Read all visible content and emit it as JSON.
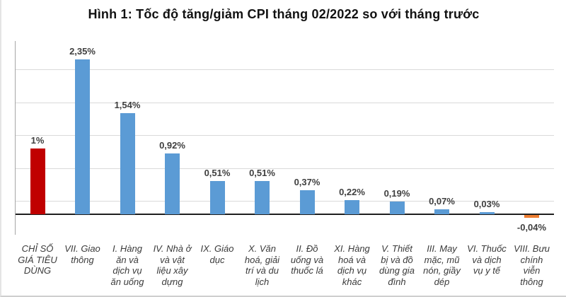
{
  "figure": {
    "title": "Hình 1: Tốc độ tăng/giảm CPI tháng 02/2022 so với tháng trước"
  },
  "chart_data": {
    "type": "bar",
    "title": "Hình 1: Tốc độ tăng/giảm CPI tháng 02/2022 so với tháng trước",
    "unit": "%",
    "legend": "none",
    "grid": true,
    "xlabel": "",
    "ylabel": "",
    "ylim": [
      -0.31,
      2.63
    ],
    "gridline_values": [
      0.2,
      0.7,
      1.2,
      1.7,
      2.2
    ],
    "categories": [
      "CHỈ SỐ GIÁ TIÊU DÙNG",
      "VII. Giao thông",
      "I. Hàng ăn và dịch vụ ăn uống",
      "IV. Nhà ở và vật liệu xây dựng",
      "IX. Giáo dục",
      "X. Văn hoá, giải trí và du lịch",
      "II. Đồ uống và thuốc lá",
      "XI. Hàng hoá và dịch vụ khác",
      "V. Thiết bị và đồ dùng gia đình",
      "III. May mặc, mũ nón, giầy dép",
      "VI. Thuốc và dịch vụ y tế",
      "VIII. Bưu chính viễn thông"
    ],
    "category_lines": [
      [
        "CHỈ SỐ",
        "GIÁ TIÊU",
        "DÙNG"
      ],
      [
        "VII. Giao",
        "thông"
      ],
      [
        "I. Hàng",
        "ăn và",
        "dịch vụ",
        "ăn uống"
      ],
      [
        "IV. Nhà ở",
        "và vật",
        "liệu xây",
        "dựng"
      ],
      [
        "IX. Giáo",
        "dục"
      ],
      [
        "X. Văn",
        "hoá, giải",
        "trí và du",
        "lịch"
      ],
      [
        "II. Đồ",
        "uống và",
        "thuốc lá"
      ],
      [
        "XI. Hàng",
        "hoá và",
        "dịch vụ",
        "khác"
      ],
      [
        "V. Thiết",
        "bị và đồ",
        "dùng gia",
        "đình"
      ],
      [
        "III. May",
        "mặc, mũ",
        "nón, giầy",
        "dép"
      ],
      [
        "VI. Thuốc",
        "và dịch",
        "vụ y tế"
      ],
      [
        "VIII. Bưu",
        "chính",
        "viễn",
        "thông"
      ]
    ],
    "values": [
      1,
      2.35,
      1.54,
      0.92,
      0.51,
      0.51,
      0.37,
      0.22,
      0.19,
      0.07,
      0.03,
      -0.04
    ],
    "value_labels": [
      "1%",
      "2,35%",
      "1,54%",
      "0,92%",
      "0,51%",
      "0,51%",
      "0,37%",
      "0,22%",
      "0,19%",
      "0,07%",
      "0,03%",
      "-0,04%"
    ],
    "bar_colors": [
      "#C00000",
      "#5B9BD5",
      "#5B9BD5",
      "#5B9BD5",
      "#5B9BD5",
      "#5B9BD5",
      "#5B9BD5",
      "#5B9BD5",
      "#5B9BD5",
      "#5B9BD5",
      "#5B9BD5",
      "#ED7D31"
    ]
  },
  "colors": {
    "cpi_bar": "#C00000",
    "group_bar": "#5B9BD5",
    "negative_bar": "#ED7D31",
    "gridline": "#D9D9D9",
    "axis_line": "#1F1F1F",
    "value_label_text": "#3F3F3F",
    "category_label_text": "#3A3A3A",
    "title_text": "#111111",
    "border": "#CFCFCF",
    "background": "#FFFFFF"
  }
}
